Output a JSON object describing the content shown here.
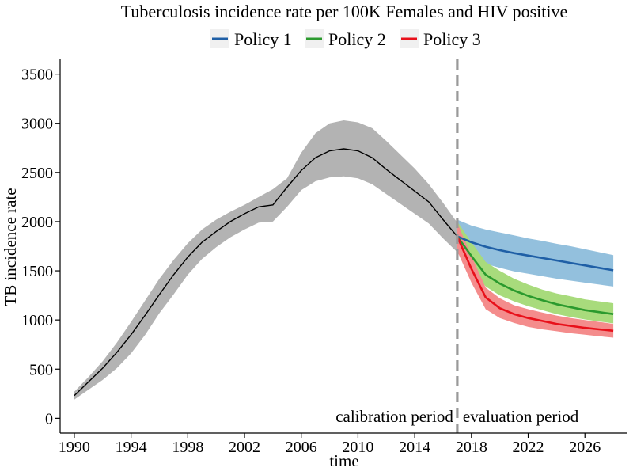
{
  "chart_data": {
    "type": "line",
    "title": "Tuberculosis incidence rate per 100K Females and HIV positive",
    "xlabel": "time",
    "ylabel": "TB incidence rate",
    "xlim": [
      1989,
      2029
    ],
    "ylim": [
      -150,
      3650
    ],
    "x_ticks": [
      1990,
      1994,
      1998,
      2002,
      2006,
      2010,
      2014,
      2018,
      2022,
      2026
    ],
    "y_ticks": [
      0,
      500,
      1000,
      1500,
      2000,
      2500,
      3000,
      3500
    ],
    "grid": false,
    "legend_position": "top",
    "divider": {
      "x": 2017,
      "style": "dashed",
      "color": "#999999",
      "left_label": "calibration period",
      "right_label": "evaluation period"
    },
    "calibration": {
      "color": "#000000",
      "band_color": "#b3b3b3",
      "x": [
        1990,
        1991,
        1992,
        1993,
        1994,
        1995,
        1996,
        1997,
        1998,
        1999,
        2000,
        2001,
        2002,
        2003,
        2004,
        2005,
        2006,
        2007,
        2008,
        2009,
        2010,
        2011,
        2012,
        2013,
        2014,
        2015,
        2016,
        2017
      ],
      "y": [
        230,
        370,
        510,
        670,
        850,
        1050,
        1260,
        1460,
        1640,
        1790,
        1900,
        2000,
        2080,
        2150,
        2170,
        2350,
        2520,
        2650,
        2720,
        2740,
        2720,
        2650,
        2530,
        2420,
        2310,
        2200,
        2020,
        1850
      ],
      "lower": [
        190,
        290,
        390,
        510,
        660,
        850,
        1070,
        1260,
        1460,
        1620,
        1740,
        1840,
        1920,
        1990,
        2000,
        2150,
        2320,
        2410,
        2450,
        2460,
        2440,
        2380,
        2280,
        2180,
        2080,
        1980,
        1830,
        1690
      ],
      "upper": [
        270,
        420,
        580,
        770,
        980,
        1200,
        1420,
        1610,
        1780,
        1920,
        2020,
        2100,
        2170,
        2250,
        2330,
        2440,
        2700,
        2900,
        3000,
        3030,
        3010,
        2950,
        2820,
        2680,
        2540,
        2380,
        2190,
        1990
      ]
    },
    "x": [
      2017,
      2018,
      2019,
      2020,
      2021,
      2022,
      2023,
      2024,
      2025,
      2026,
      2027,
      2028
    ],
    "series": [
      {
        "name": "Policy 1",
        "color": "#1f5fa6",
        "band_color": "#93c0dd",
        "values": [
          1850,
          1790,
          1745,
          1710,
          1680,
          1655,
          1630,
          1605,
          1580,
          1555,
          1530,
          1505
        ],
        "lower": [
          1690,
          1620,
          1570,
          1530,
          1495,
          1470,
          1445,
          1420,
          1400,
          1380,
          1360,
          1340
        ],
        "upper": [
          2020,
          1960,
          1920,
          1890,
          1860,
          1830,
          1805,
          1775,
          1750,
          1720,
          1690,
          1660
        ]
      },
      {
        "name": "Policy 2",
        "color": "#2b9a2e",
        "band_color": "#a8db7c",
        "values": [
          1850,
          1650,
          1460,
          1370,
          1300,
          1245,
          1200,
          1160,
          1130,
          1100,
          1080,
          1060
        ],
        "lower": [
          1720,
          1520,
          1340,
          1250,
          1190,
          1140,
          1100,
          1060,
          1030,
          1005,
          985,
          965
        ],
        "upper": [
          2000,
          1790,
          1590,
          1500,
          1420,
          1360,
          1310,
          1270,
          1240,
          1210,
          1190,
          1170
        ]
      },
      {
        "name": "Policy 3",
        "color": "#e8101a",
        "band_color": "#f48c8c",
        "values": [
          1850,
          1520,
          1230,
          1120,
          1060,
          1020,
          990,
          960,
          940,
          920,
          905,
          890
        ],
        "lower": [
          1700,
          1380,
          1110,
          1020,
          970,
          930,
          905,
          885,
          865,
          850,
          835,
          820
        ],
        "upper": [
          1990,
          1650,
          1330,
          1220,
          1150,
          1110,
          1075,
          1045,
          1020,
          1000,
          980,
          960
        ]
      }
    ]
  }
}
